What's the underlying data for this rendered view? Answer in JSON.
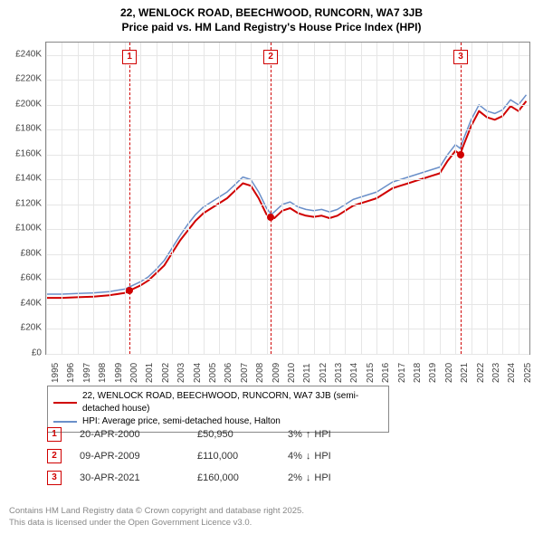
{
  "title_line1": "22, WENLOCK ROAD, BEECHWOOD, RUNCORN, WA7 3JB",
  "title_line2": "Price paid vs. HM Land Registry's House Price Index (HPI)",
  "chart": {
    "type": "line",
    "background_color": "#ffffff",
    "grid_color": "#e6e6e6",
    "border_color": "#888888",
    "axis_label_color": "#444444",
    "axis_fontsize": 10,
    "x": {
      "min": 1995,
      "max": 2025.7,
      "ticks": [
        1995,
        1996,
        1997,
        1998,
        1999,
        2000,
        2001,
        2002,
        2003,
        2004,
        2005,
        2006,
        2007,
        2008,
        2009,
        2010,
        2011,
        2012,
        2013,
        2014,
        2015,
        2016,
        2017,
        2018,
        2019,
        2020,
        2021,
        2022,
        2023,
        2024,
        2025
      ]
    },
    "y": {
      "min": 0,
      "max": 250000,
      "ticks": [
        0,
        20000,
        40000,
        60000,
        80000,
        100000,
        120000,
        140000,
        160000,
        180000,
        200000,
        220000,
        240000
      ],
      "tick_labels": [
        "£0",
        "£20K",
        "£40K",
        "£60K",
        "£80K",
        "£100K",
        "£120K",
        "£140K",
        "£160K",
        "£180K",
        "£200K",
        "£220K",
        "£240K"
      ]
    },
    "series": [
      {
        "id": "hpi",
        "label": "HPI: Average price, semi-detached house, Halton",
        "color": "#6a8fc9",
        "line_width": 1.5,
        "points": [
          [
            1995,
            48000
          ],
          [
            1996,
            48000
          ],
          [
            1997,
            48500
          ],
          [
            1998,
            49000
          ],
          [
            1999,
            50000
          ],
          [
            2000,
            52000
          ],
          [
            2000.5,
            55000
          ],
          [
            2001,
            58000
          ],
          [
            2001.5,
            62000
          ],
          [
            2002,
            68000
          ],
          [
            2002.5,
            75000
          ],
          [
            2003,
            85000
          ],
          [
            2003.5,
            95000
          ],
          [
            2004,
            104000
          ],
          [
            2004.5,
            112000
          ],
          [
            2005,
            118000
          ],
          [
            2005.5,
            122000
          ],
          [
            2006,
            126000
          ],
          [
            2006.5,
            130000
          ],
          [
            2007,
            136000
          ],
          [
            2007.5,
            142000
          ],
          [
            2008,
            140000
          ],
          [
            2008.5,
            130000
          ],
          [
            2009,
            117000
          ],
          [
            2009.3,
            112000
          ],
          [
            2009.5,
            114000
          ],
          [
            2010,
            120000
          ],
          [
            2010.5,
            122000
          ],
          [
            2011,
            118000
          ],
          [
            2011.5,
            116000
          ],
          [
            2012,
            115000
          ],
          [
            2012.5,
            116000
          ],
          [
            2013,
            114000
          ],
          [
            2013.5,
            116000
          ],
          [
            2014,
            120000
          ],
          [
            2014.5,
            124000
          ],
          [
            2015,
            126000
          ],
          [
            2015.5,
            128000
          ],
          [
            2016,
            130000
          ],
          [
            2016.5,
            134000
          ],
          [
            2017,
            138000
          ],
          [
            2017.5,
            140000
          ],
          [
            2018,
            142000
          ],
          [
            2018.5,
            144000
          ],
          [
            2019,
            146000
          ],
          [
            2019.5,
            148000
          ],
          [
            2020,
            150000
          ],
          [
            2020.5,
            160000
          ],
          [
            2021,
            168000
          ],
          [
            2021.3,
            165000
          ],
          [
            2021.5,
            172000
          ],
          [
            2022,
            188000
          ],
          [
            2022.5,
            200000
          ],
          [
            2023,
            195000
          ],
          [
            2023.5,
            193000
          ],
          [
            2024,
            196000
          ],
          [
            2024.5,
            204000
          ],
          [
            2025,
            200000
          ],
          [
            2025.5,
            208000
          ]
        ]
      },
      {
        "id": "price_paid",
        "label": "22, WENLOCK ROAD, BEECHWOOD, RUNCORN, WA7 3JB (semi-detached house)",
        "color": "#d00000",
        "line_width": 2,
        "points": [
          [
            1995,
            45000
          ],
          [
            1996,
            45000
          ],
          [
            1997,
            45500
          ],
          [
            1998,
            46000
          ],
          [
            1999,
            47000
          ],
          [
            2000,
            49000
          ],
          [
            2000.3,
            50950
          ],
          [
            2000.5,
            52000
          ],
          [
            2001,
            55000
          ],
          [
            2001.5,
            59000
          ],
          [
            2002,
            65000
          ],
          [
            2002.5,
            71000
          ],
          [
            2003,
            81000
          ],
          [
            2003.5,
            91000
          ],
          [
            2004,
            99000
          ],
          [
            2004.5,
            107000
          ],
          [
            2005,
            113000
          ],
          [
            2005.5,
            117000
          ],
          [
            2006,
            121000
          ],
          [
            2006.5,
            125000
          ],
          [
            2007,
            131000
          ],
          [
            2007.5,
            137000
          ],
          [
            2008,
            135000
          ],
          [
            2008.5,
            125000
          ],
          [
            2009,
            112000
          ],
          [
            2009.3,
            110000
          ],
          [
            2009.5,
            109000
          ],
          [
            2010,
            115000
          ],
          [
            2010.5,
            117000
          ],
          [
            2011,
            113000
          ],
          [
            2011.5,
            111000
          ],
          [
            2012,
            110000
          ],
          [
            2012.5,
            111000
          ],
          [
            2013,
            109000
          ],
          [
            2013.5,
            111000
          ],
          [
            2014,
            115000
          ],
          [
            2014.5,
            119000
          ],
          [
            2015,
            121000
          ],
          [
            2015.5,
            123000
          ],
          [
            2016,
            125000
          ],
          [
            2016.5,
            129000
          ],
          [
            2017,
            133000
          ],
          [
            2017.5,
            135000
          ],
          [
            2018,
            137000
          ],
          [
            2018.5,
            139000
          ],
          [
            2019,
            141000
          ],
          [
            2019.5,
            143000
          ],
          [
            2020,
            145000
          ],
          [
            2020.5,
            155000
          ],
          [
            2021,
            163000
          ],
          [
            2021.3,
            160000
          ],
          [
            2021.5,
            167000
          ],
          [
            2022,
            183000
          ],
          [
            2022.5,
            195000
          ],
          [
            2023,
            190000
          ],
          [
            2023.5,
            188000
          ],
          [
            2024,
            191000
          ],
          [
            2024.5,
            199000
          ],
          [
            2025,
            195000
          ],
          [
            2025.5,
            203000
          ]
        ]
      }
    ],
    "markers": [
      {
        "num": "1",
        "x": 2000.3,
        "y": 50950,
        "point_color": "#d00000"
      },
      {
        "num": "2",
        "x": 2009.27,
        "y": 110000,
        "point_color": "#d00000"
      },
      {
        "num": "3",
        "x": 2021.33,
        "y": 160000,
        "point_color": "#d00000"
      }
    ]
  },
  "legend": {
    "items": [
      {
        "color": "#d00000",
        "label_path": "chart.series.1.label"
      },
      {
        "color": "#6a8fc9",
        "label_path": "chart.series.0.label"
      }
    ]
  },
  "marker_rows": [
    {
      "num": "1",
      "date": "20-APR-2000",
      "price": "£50,950",
      "pct": "3%",
      "arrow": "↑",
      "suffix": "HPI"
    },
    {
      "num": "2",
      "date": "09-APR-2009",
      "price": "£110,000",
      "pct": "4%",
      "arrow": "↓",
      "suffix": "HPI"
    },
    {
      "num": "3",
      "date": "30-APR-2021",
      "price": "£160,000",
      "pct": "2%",
      "arrow": "↓",
      "suffix": "HPI"
    }
  ],
  "footer_line1": "Contains HM Land Registry data © Crown copyright and database right 2025.",
  "footer_line2": "This data is licensed under the Open Government Licence v3.0."
}
